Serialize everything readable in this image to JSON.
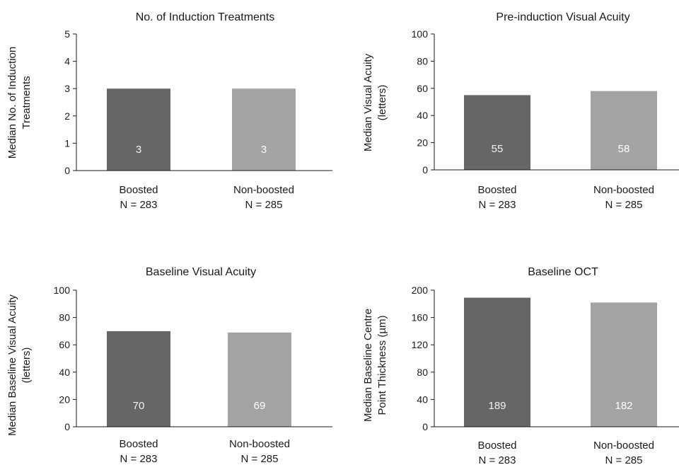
{
  "chart_data": [
    {
      "type": "bar",
      "title": "No. of Induction Treatments",
      "ylabel": [
        "Median No. of Induction",
        "Treatments"
      ],
      "xlabel": "",
      "ylim": [
        0,
        5
      ],
      "yticks": [
        0,
        1,
        2,
        3,
        4,
        5
      ],
      "grid": false,
      "categories": [
        {
          "name": "Boosted",
          "n_label": "N = 283"
        },
        {
          "name": "Non-boosted",
          "n_label": "N = 285"
        }
      ],
      "values": [
        3,
        3
      ],
      "data_labels": [
        "3",
        "3"
      ],
      "colors": [
        "#666666",
        "#a3a3a3"
      ]
    },
    {
      "type": "bar",
      "title": "Pre-induction Visual Acuity",
      "ylabel": [
        "Median Visual Acuity",
        "(letters)"
      ],
      "xlabel": "",
      "ylim": [
        0,
        100
      ],
      "yticks": [
        0,
        20,
        40,
        60,
        80,
        100
      ],
      "grid": false,
      "categories": [
        {
          "name": "Boosted",
          "n_label": "N = 283"
        },
        {
          "name": "Non-boosted",
          "n_label": "N = 285"
        }
      ],
      "values": [
        55,
        58
      ],
      "data_labels": [
        "55",
        "58"
      ],
      "colors": [
        "#666666",
        "#a3a3a3"
      ]
    },
    {
      "type": "bar",
      "title": "Baseline Visual Acuity",
      "ylabel": [
        "Median Baseline Visual Acuity",
        "(letters)"
      ],
      "xlabel": "",
      "ylim": [
        0,
        100
      ],
      "yticks": [
        0,
        20,
        40,
        60,
        80,
        100
      ],
      "grid": false,
      "categories": [
        {
          "name": "Boosted",
          "n_label": "N = 283"
        },
        {
          "name": "Non-boosted",
          "n_label": "N = 285"
        }
      ],
      "values": [
        70,
        69
      ],
      "data_labels": [
        "70",
        "69"
      ],
      "colors": [
        "#666666",
        "#a3a3a3"
      ]
    },
    {
      "type": "bar",
      "title": "Baseline OCT",
      "ylabel": [
        "Median Baseline Centre",
        "Point Thickness (µm)"
      ],
      "xlabel": "",
      "ylim": [
        0,
        200
      ],
      "yticks": [
        0,
        40,
        80,
        120,
        160,
        200
      ],
      "grid": false,
      "categories": [
        {
          "name": "Boosted",
          "n_label": "N = 283"
        },
        {
          "name": "Non-boosted",
          "n_label": "N = 285"
        }
      ],
      "values": [
        189,
        182
      ],
      "data_labels": [
        "189",
        "182"
      ],
      "colors": [
        "#666666",
        "#a3a3a3"
      ]
    }
  ]
}
